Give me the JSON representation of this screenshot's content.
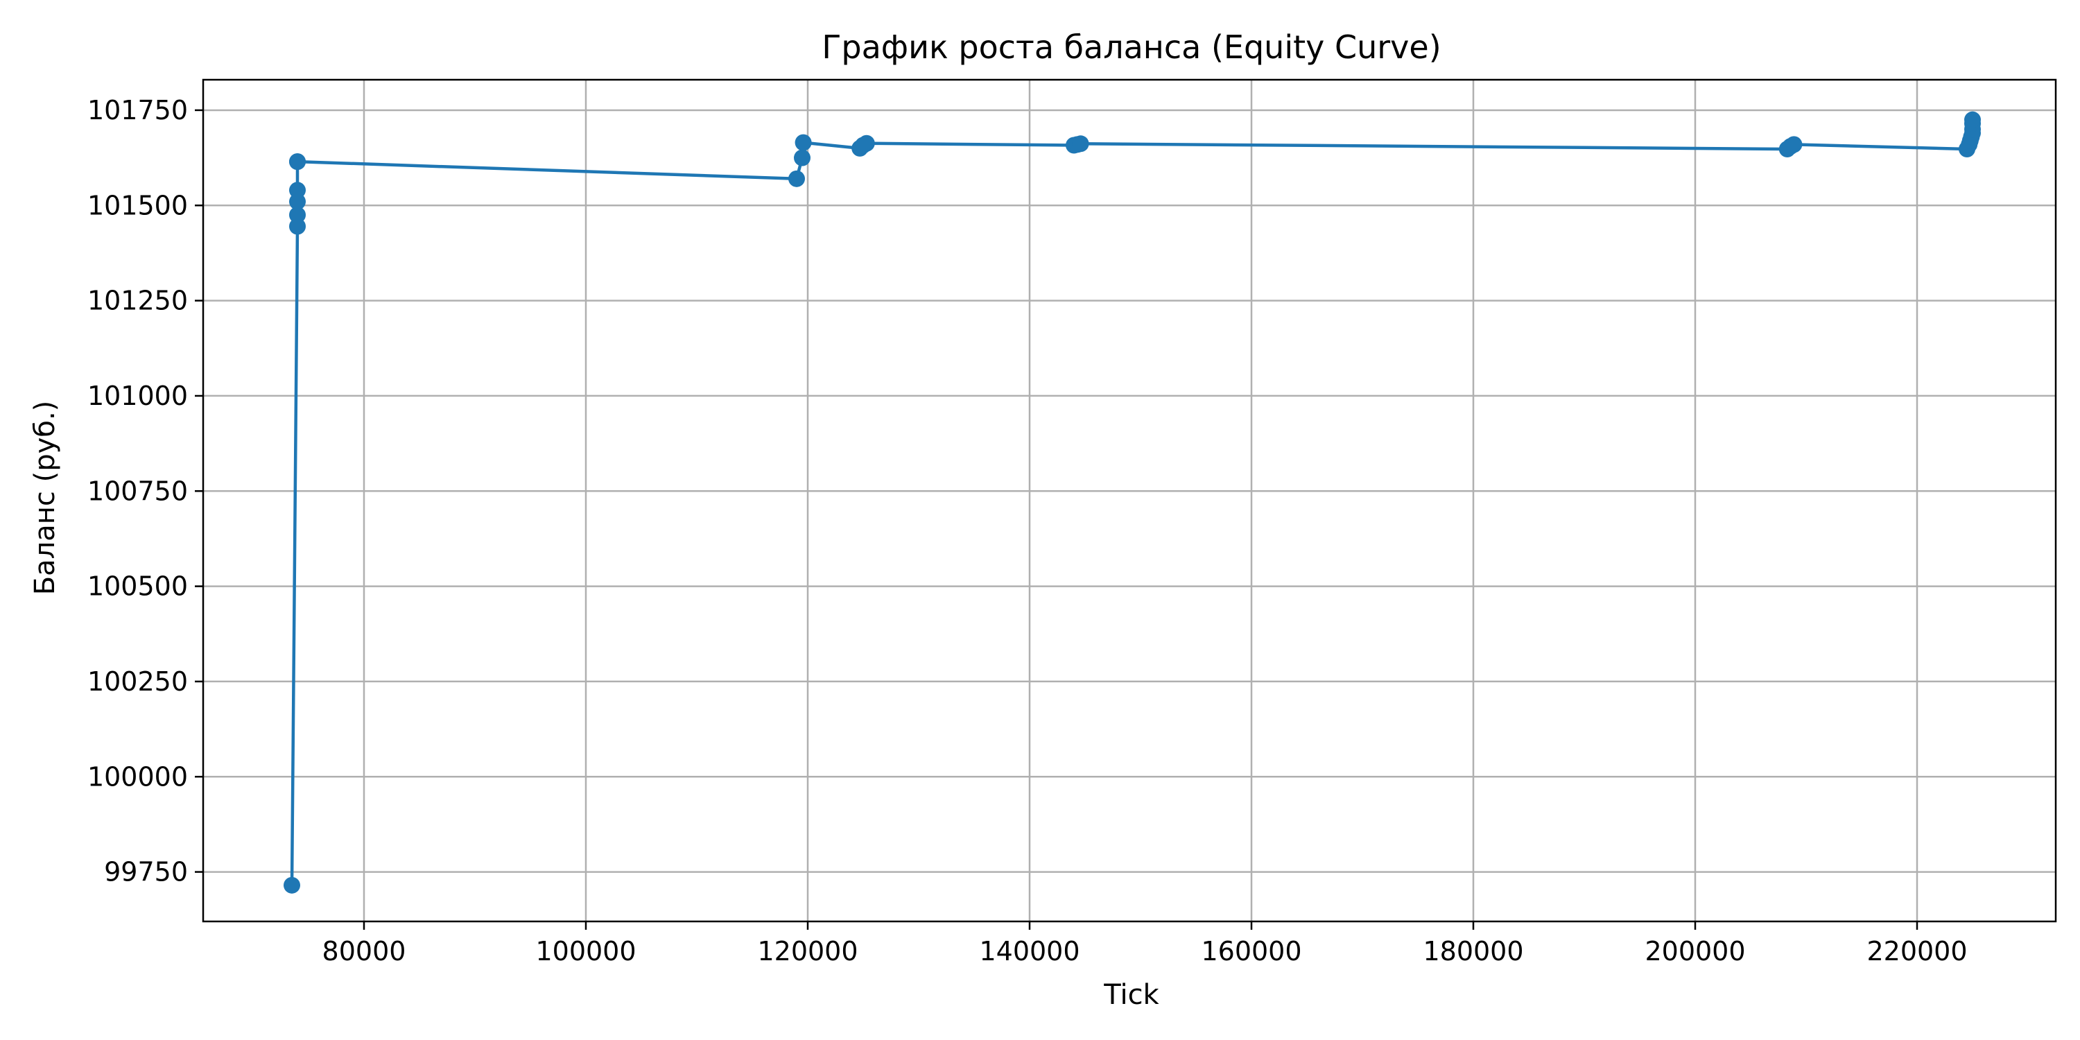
{
  "chart_data": {
    "type": "line",
    "title": "График роста баланса (Equity Curve)",
    "xlabel": "Tick",
    "ylabel": "Баланс (руб.)",
    "xlim": [
      65500,
      232500
    ],
    "ylim": [
      99620,
      101830
    ],
    "x_ticks": [
      80000,
      100000,
      120000,
      140000,
      160000,
      180000,
      200000,
      220000
    ],
    "x_tick_labels": [
      "80000",
      "100000",
      "120000",
      "140000",
      "160000",
      "180000",
      "200000",
      "220000"
    ],
    "y_ticks": [
      99750,
      100000,
      100250,
      100500,
      100750,
      101000,
      101250,
      101500,
      101750
    ],
    "y_tick_labels": [
      "99750",
      "100000",
      "100250",
      "100500",
      "100750",
      "101000",
      "101250",
      "101500",
      "101750"
    ],
    "grid": true,
    "marker": "circle",
    "colors": {
      "line": "#1f77b4",
      "grid": "#b0b0b0",
      "axes": "#000000"
    },
    "series": [
      {
        "x": [
          73500,
          74000,
          74000,
          74000,
          74000,
          74000,
          74000,
          119000,
          119500,
          119600,
          124700,
          125000,
          125300,
          144000,
          144300,
          144600,
          208300,
          208600,
          208900,
          224500,
          224700,
          224800,
          224900,
          225000,
          225000,
          225000,
          225000
        ],
        "values": [
          99715,
          101445,
          101475,
          101510,
          101540,
          101615,
          101615,
          101570,
          101625,
          101665,
          101650,
          101658,
          101663,
          101658,
          101660,
          101662,
          101648,
          101655,
          101660,
          101648,
          101660,
          101670,
          101680,
          101690,
          101700,
          101715,
          101725
        ]
      }
    ]
  }
}
